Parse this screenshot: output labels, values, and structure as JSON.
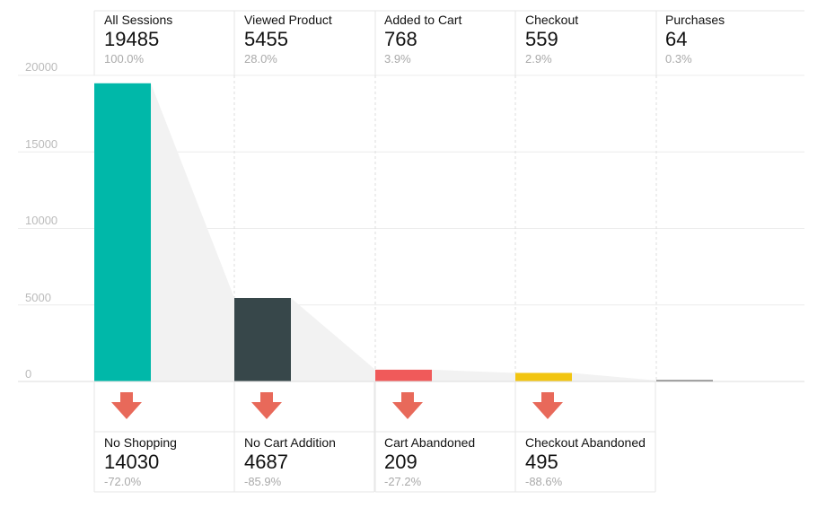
{
  "chart_data": {
    "type": "bar",
    "subtype": "funnel",
    "ylim": [
      0,
      20000
    ],
    "yticks": [
      0,
      5000,
      10000,
      15000,
      20000
    ],
    "grid": true,
    "categories": [
      "All Sessions",
      "Viewed Product",
      "Added to Cart",
      "Checkout",
      "Purchases"
    ],
    "values": [
      19485,
      5455,
      768,
      559,
      64
    ],
    "percents": [
      "100.0%",
      "28.0%",
      "3.9%",
      "2.9%",
      "0.3%"
    ],
    "bar_colors": [
      "#00b8a9",
      "#37474a",
      "#f05a5a",
      "#f2c511",
      "#555555"
    ],
    "dropoffs": [
      {
        "label": "No Shopping",
        "value": 14030,
        "percent": "-72.0%"
      },
      {
        "label": "No Cart Addition",
        "value": 4687,
        "percent": "-85.9%"
      },
      {
        "label": "Cart Abandoned",
        "value": 209,
        "percent": "-27.2%"
      },
      {
        "label": "Checkout Abandoned",
        "value": 495,
        "percent": "-88.6%"
      }
    ],
    "arrow_color": "#e8695a"
  }
}
